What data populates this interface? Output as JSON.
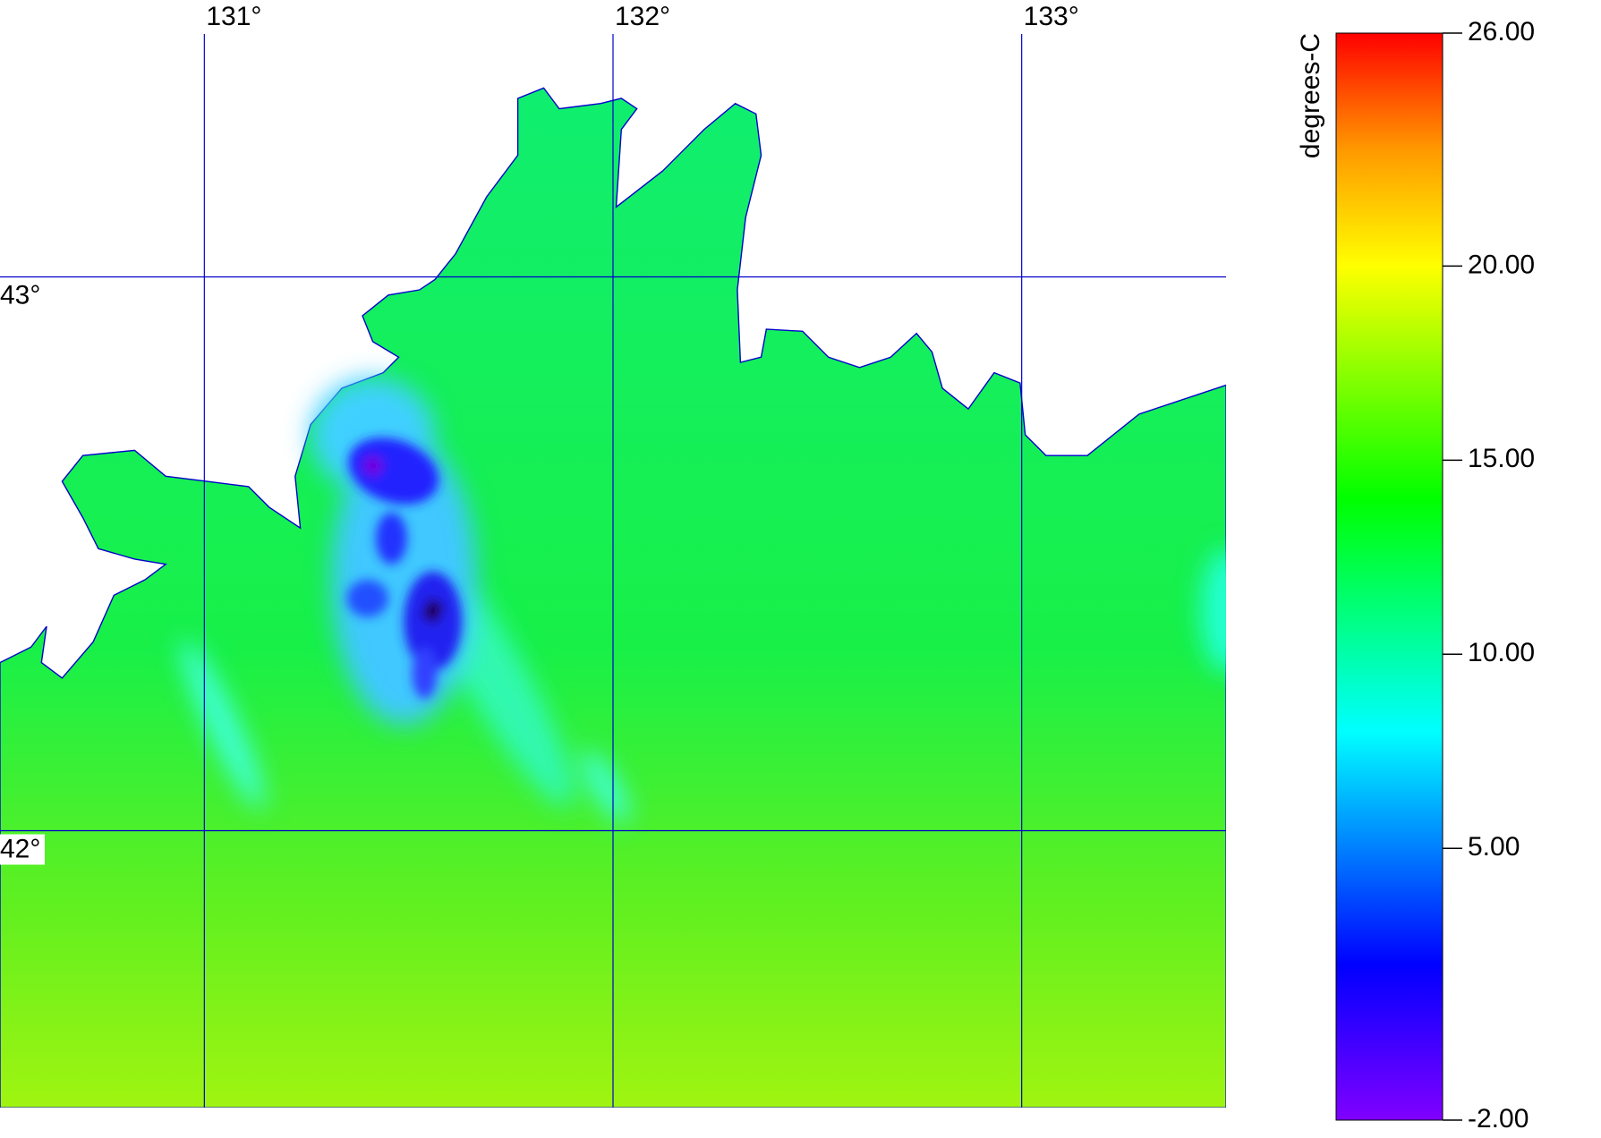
{
  "map": {
    "lonlim": [
      130.5,
      133.5
    ],
    "latlim": [
      41.5,
      43.5
    ],
    "lon_ticks": [
      {
        "value": 131,
        "label": "131°"
      },
      {
        "value": 132,
        "label": "132°"
      },
      {
        "value": 133,
        "label": "133°"
      }
    ],
    "lat_ticks": [
      {
        "value": 43,
        "label": "43°"
      },
      {
        "value": 42,
        "label": "42°"
      }
    ],
    "grid_color": "#0000cc"
  },
  "colorbar": {
    "label": "degrees-C",
    "lim": [
      -2,
      26
    ],
    "ticks": [
      {
        "value": -2,
        "label": "-2.00"
      },
      {
        "value": 5,
        "label": "5.00"
      },
      {
        "value": 10,
        "label": "10.00"
      },
      {
        "value": 15,
        "label": "15.00"
      },
      {
        "value": 20,
        "label": "20.00"
      },
      {
        "value": 26,
        "label": "26.00"
      }
    ],
    "colors": [
      {
        "value": -2,
        "color": "#8000ff"
      },
      {
        "value": 2,
        "color": "#0000ff"
      },
      {
        "value": 8,
        "color": "#00ffff"
      },
      {
        "value": 14,
        "color": "#00ff00"
      },
      {
        "value": 20,
        "color": "#ffff00"
      },
      {
        "value": 23,
        "color": "#ff9900"
      },
      {
        "value": 26,
        "color": "#ff0000"
      }
    ]
  }
}
